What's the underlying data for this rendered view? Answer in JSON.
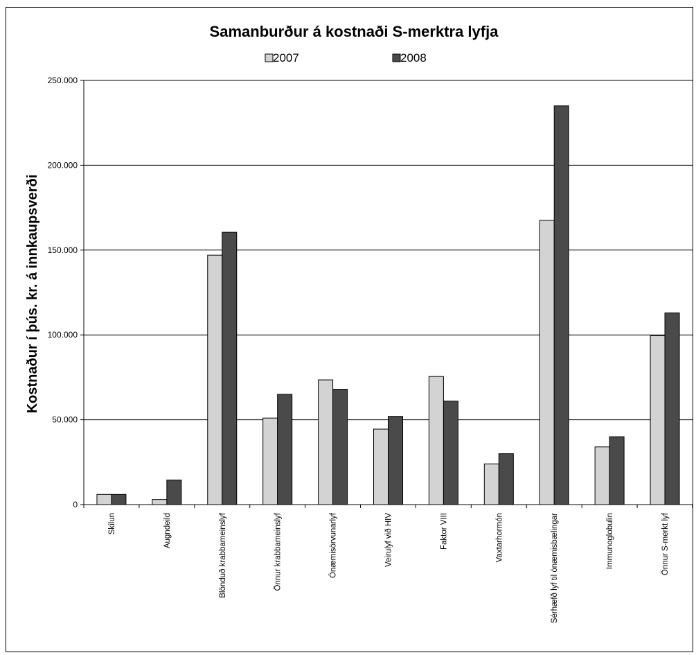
{
  "chart_data": {
    "type": "bar",
    "title": "Samanburður á kostnaði S-merktra lyfja",
    "ylabel": "Kostnaður í þús. kr. á innkaupsverði",
    "xlabel": "",
    "ylim": [
      0,
      250000
    ],
    "yticks": [
      0,
      50000,
      100000,
      150000,
      200000,
      250000
    ],
    "ytick_labels": [
      "0",
      "50.000",
      "100.000",
      "150.000",
      "200.000",
      "250.000"
    ],
    "grid": "horizontal",
    "legend_position": "top",
    "categories": [
      "Skilun",
      "Augndeild",
      "Blönduð krabbameinslyf",
      "Önnur krabbameinslyf",
      "Ónæmisörvunarlyf",
      "Veirulyf við HIV",
      "Faktor VIII",
      "Vaxtarhormón",
      "Sérhæfð lyf til ónæmisbælingar",
      "Immunoglobulin",
      "Önnur S-merkt lyf"
    ],
    "series": [
      {
        "name": "2007",
        "color": "#d3d3d3",
        "values": [
          6000,
          3000,
          147000,
          51000,
          73500,
          44500,
          75500,
          24000,
          167500,
          34000,
          99500
        ]
      },
      {
        "name": "2008",
        "color": "#4a4a4a",
        "values": [
          6000,
          14500,
          160500,
          65000,
          68000,
          52000,
          61000,
          30000,
          235000,
          40000,
          113000
        ]
      }
    ]
  }
}
